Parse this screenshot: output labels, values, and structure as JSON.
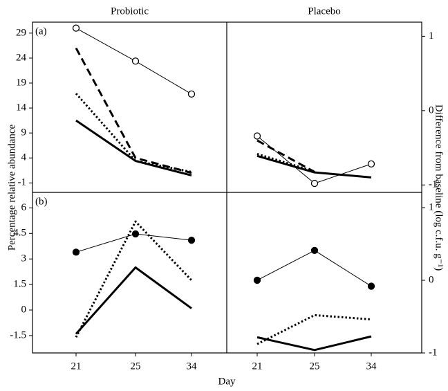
{
  "chart_data": [
    {
      "type": "line",
      "title": "Probiotic",
      "annotation": "(a)",
      "ylim": [
        -2.9,
        31.2
      ],
      "yticks": [
        29,
        24,
        19,
        14,
        9,
        4,
        -1
      ],
      "series": [
        {
          "style": "open-circle",
          "color": "#000000",
          "values": [
            30.0,
            23.4,
            16.8
          ]
        },
        {
          "style": "dashed",
          "color": "#000000",
          "values": [
            26.0,
            4.0,
            1.0
          ]
        },
        {
          "style": "dotted",
          "color": "#000000",
          "values": [
            16.9,
            3.4,
            1.2
          ]
        },
        {
          "style": "solid",
          "color": "#000000",
          "values": [
            11.5,
            3.4,
            0.5
          ]
        }
      ]
    },
    {
      "type": "line",
      "title": "Placebo",
      "ylim": [
        -2.9,
        31.2
      ],
      "y2lim": [
        -1.1,
        1.19
      ],
      "y2ticks": [
        1,
        0,
        -1
      ],
      "series": [
        {
          "style": "open-circle",
          "color": "#000000",
          "values": [
            8.4,
            -1.1,
            2.8
          ]
        },
        {
          "style": "dashed",
          "color": "#000000",
          "values": [
            7.5,
            1.2,
            null
          ]
        },
        {
          "style": "dotted",
          "color": "#000000",
          "values": [
            4.8,
            1.3,
            null
          ]
        },
        {
          "style": "solid",
          "color": "#000000",
          "values": [
            4.4,
            1.1,
            0.1
          ]
        }
      ]
    },
    {
      "type": "line",
      "annotation": "(b)",
      "categories": [
        "21",
        "25",
        "34"
      ],
      "ylim": [
        -2.52,
        6.91
      ],
      "yticks": [
        6,
        4.5,
        3,
        1.5,
        0,
        -1.5
      ],
      "series": [
        {
          "style": "filled-circle",
          "color": "#000000",
          "values": [
            3.4,
            4.47,
            4.1
          ]
        },
        {
          "style": "dotted",
          "color": "#000000",
          "values": [
            -1.6,
            5.2,
            1.75
          ]
        },
        {
          "style": "solid",
          "color": "#000000",
          "values": [
            -1.4,
            2.5,
            0.1
          ]
        }
      ]
    },
    {
      "type": "line",
      "categories": [
        "21",
        "25",
        "34"
      ],
      "ylim": [
        -2.52,
        6.91
      ],
      "y2lim": [
        -1.0,
        1.21
      ],
      "y2ticks": [
        1,
        0,
        -1
      ],
      "series": [
        {
          "style": "filled-circle",
          "color": "#000000",
          "values": [
            1.75,
            3.5,
            1.4
          ]
        },
        {
          "style": "dotted",
          "color": "#000000",
          "values": [
            -2.0,
            -0.3,
            -0.55
          ]
        },
        {
          "style": "solid",
          "color": "#000000",
          "values": [
            -1.6,
            -2.35,
            -1.55
          ]
        }
      ]
    }
  ],
  "axis_labels": {
    "ylabel": "Percentage  relative abundance",
    "y2label": "Difference from baseline (log c.f.u. g⁻¹)",
    "xlabel": "Day"
  }
}
